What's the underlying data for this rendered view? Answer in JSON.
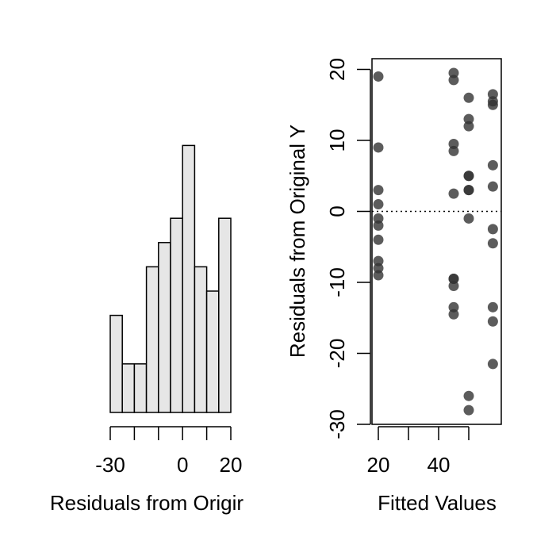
{
  "chart_data": [
    {
      "type": "bar",
      "subtype": "histogram",
      "title": "",
      "xlabel": "Residuals from Origir",
      "ylabel": "",
      "bin_width": 5,
      "bin_edges": [
        -30,
        -25,
        -20,
        -15,
        -10,
        -5,
        0,
        5,
        10,
        15,
        20
      ],
      "counts": [
        4,
        2,
        2,
        6,
        7,
        8,
        11,
        6,
        5,
        8
      ],
      "xlim": [
        -30,
        20
      ],
      "xticks": [
        -30,
        0,
        20
      ],
      "xtick_labels": [
        "-30",
        "0",
        "20"
      ],
      "bar_fill": "#e6e6e6",
      "bar_stroke": "#000000",
      "y_axis_shown": false
    },
    {
      "type": "scatter",
      "title": "",
      "xlabel": "Fitted Values",
      "ylabel": "Residuals from Original Y",
      "xlim": [
        18,
        60
      ],
      "ylim": [
        -30,
        21
      ],
      "xticks": [
        20,
        40
      ],
      "yticks": [
        -30,
        -20,
        -10,
        0,
        10,
        20
      ],
      "ytick_labels": [
        "-30",
        "-20",
        "-10",
        "0",
        "10",
        "20"
      ],
      "reference_line": {
        "y": 0,
        "style": "dotted"
      },
      "point_color": "#333333",
      "point_opacity": 0.8,
      "points": [
        {
          "x": 20,
          "y": 19
        },
        {
          "x": 20,
          "y": 9
        },
        {
          "x": 20,
          "y": 3
        },
        {
          "x": 20,
          "y": 1
        },
        {
          "x": 20,
          "y": -1
        },
        {
          "x": 20,
          "y": -2
        },
        {
          "x": 20,
          "y": -4
        },
        {
          "x": 20,
          "y": -7
        },
        {
          "x": 20,
          "y": -8
        },
        {
          "x": 20,
          "y": -9
        },
        {
          "x": 45,
          "y": 19.5
        },
        {
          "x": 45,
          "y": 18.5
        },
        {
          "x": 45,
          "y": 9.5
        },
        {
          "x": 45,
          "y": 8.5
        },
        {
          "x": 45,
          "y": 2.5
        },
        {
          "x": 45,
          "y": -9.5
        },
        {
          "x": 45,
          "y": -9.5
        },
        {
          "x": 45,
          "y": -10.5
        },
        {
          "x": 45,
          "y": -13.5
        },
        {
          "x": 45,
          "y": -14.5
        },
        {
          "x": 50,
          "y": 16
        },
        {
          "x": 50,
          "y": 13
        },
        {
          "x": 50,
          "y": 12
        },
        {
          "x": 50,
          "y": 5
        },
        {
          "x": 50,
          "y": 5
        },
        {
          "x": 50,
          "y": 3
        },
        {
          "x": 50,
          "y": 3
        },
        {
          "x": 50,
          "y": -1
        },
        {
          "x": 50,
          "y": -26
        },
        {
          "x": 50,
          "y": -28
        },
        {
          "x": 58,
          "y": 16.5
        },
        {
          "x": 58,
          "y": 15.5
        },
        {
          "x": 58,
          "y": 15
        },
        {
          "x": 58,
          "y": 6.5
        },
        {
          "x": 58,
          "y": 3.5
        },
        {
          "x": 58,
          "y": -2.5
        },
        {
          "x": 58,
          "y": -4.5
        },
        {
          "x": 58,
          "y": -13.5
        },
        {
          "x": 58,
          "y": -15.5
        },
        {
          "x": 58,
          "y": -21.5
        }
      ]
    }
  ]
}
